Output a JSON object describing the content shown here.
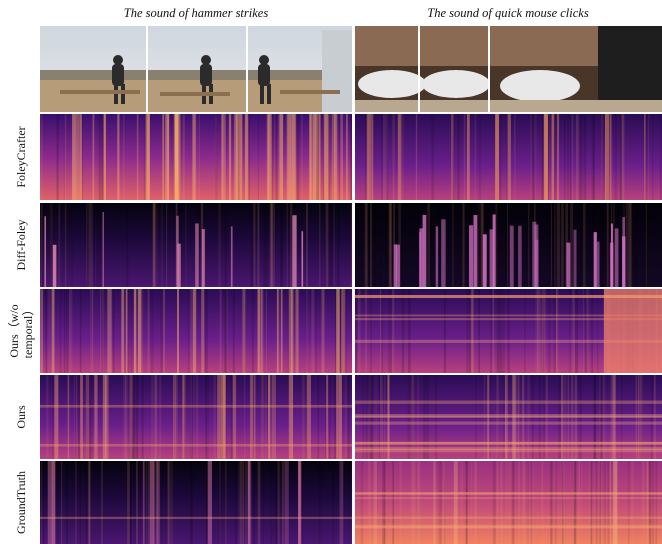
{
  "columns": [
    "The sound of hammer strikes",
    "The sound of quick mouse clicks"
  ],
  "rows": [
    {
      "lines": [
        "FoleyCrafter"
      ]
    },
    {
      "lines": [
        "Diff-Foley"
      ]
    },
    {
      "lines": [
        "Ours（w/o",
        "temporal）"
      ]
    },
    {
      "lines": [
        "Ours"
      ]
    },
    {
      "lines": [
        "GroundTruth"
      ]
    }
  ]
}
